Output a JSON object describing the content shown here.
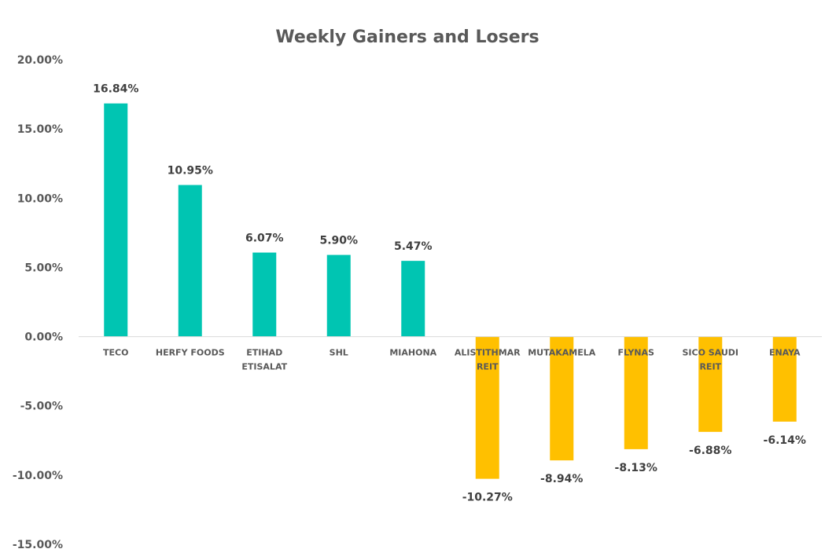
{
  "chart_data": {
    "type": "bar",
    "title": "Weekly Gainers and Losers",
    "categories": [
      [
        "TECO"
      ],
      [
        "HERFY FOODS"
      ],
      [
        "ETIHAD",
        "ETISALAT"
      ],
      [
        "SHL"
      ],
      [
        "MIAHONA"
      ],
      [
        "ALISTITHMAR",
        "REIT"
      ],
      [
        "MUTAKAMELA"
      ],
      [
        "FLYNAS"
      ],
      [
        "SICO SAUDI",
        "REIT"
      ],
      [
        "ENAYA"
      ]
    ],
    "values": [
      16.84,
      10.95,
      6.07,
      5.9,
      5.47,
      -10.27,
      -8.94,
      -8.13,
      -6.88,
      -6.14
    ],
    "data_labels": [
      "16.84%",
      "10.95%",
      "6.07%",
      "5.90%",
      "5.47%",
      "-10.27%",
      "-8.94%",
      "-8.13%",
      "-6.88%",
      "-6.14%"
    ],
    "y_ticks": [
      20,
      15,
      10,
      5,
      0,
      -5,
      -10,
      -15
    ],
    "y_tick_labels": [
      "20.00%",
      "15.00%",
      "10.00%",
      "5.00%",
      "0.00%",
      "-5.00%",
      "-10.00%",
      "-15.00%"
    ],
    "ylim": [
      -15,
      20
    ],
    "grid": false,
    "colors": {
      "positive": "#00C5B2",
      "negative": "#FFC000",
      "axis": "#D9D9D9"
    }
  }
}
